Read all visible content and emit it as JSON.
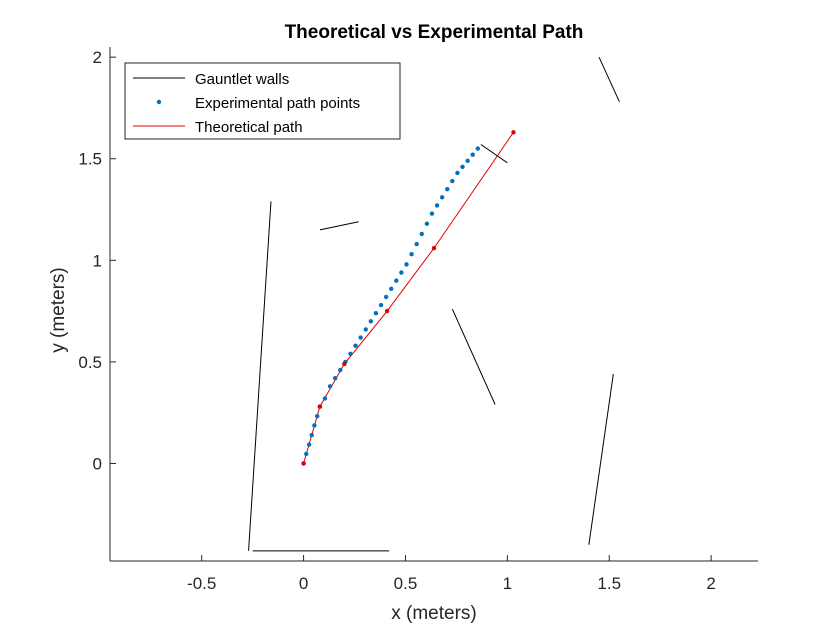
{
  "chart_data": {
    "type": "line",
    "title": "Theoretical vs Experimental Path",
    "xlabel": "x (meters)",
    "ylabel": "y (meters)",
    "xlim": [
      -0.95,
      2.23
    ],
    "ylim": [
      -0.48,
      2.05
    ],
    "xticks": [
      -0.5,
      0,
      0.5,
      1,
      1.5,
      2
    ],
    "xtick_labels": [
      "-0.5",
      "0",
      "0.5",
      "1",
      "1.5",
      "2"
    ],
    "yticks": [
      0,
      0.5,
      1,
      1.5,
      2
    ],
    "ytick_labels": [
      "0",
      "0.5",
      "1",
      "1.5",
      "2"
    ],
    "grid": false,
    "legend_position": "top-left",
    "colors": {
      "walls": "#000000",
      "experimental": "#0072BD",
      "theoretical": "#E00000",
      "axes": "#262626"
    },
    "series": [
      {
        "name": "Gauntlet walls",
        "kind": "segments",
        "segments": [
          [
            [
              -0.27,
              -0.43
            ],
            [
              -0.16,
              1.29
            ]
          ],
          [
            [
              -0.25,
              -0.43
            ],
            [
              0.42,
              -0.43
            ]
          ],
          [
            [
              0.08,
              1.15
            ],
            [
              0.27,
              1.19
            ]
          ],
          [
            [
              0.73,
              0.76
            ],
            [
              0.94,
              0.29
            ]
          ],
          [
            [
              1.4,
              -0.4
            ],
            [
              1.52,
              0.44
            ]
          ],
          [
            [
              0.87,
              1.57
            ],
            [
              1.0,
              1.48
            ]
          ],
          [
            [
              1.45,
              2.0
            ],
            [
              1.55,
              1.78
            ]
          ]
        ]
      },
      {
        "name": "Experimental path points",
        "kind": "scatter",
        "x": [
          0.0,
          0.013,
          0.027,
          0.04,
          0.053,
          0.067,
          0.08,
          0.105,
          0.13,
          0.155,
          0.18,
          0.205,
          0.23,
          0.255,
          0.28,
          0.305,
          0.33,
          0.355,
          0.38,
          0.405,
          0.43,
          0.455,
          0.48,
          0.505,
          0.53,
          0.555,
          0.58,
          0.605,
          0.63,
          0.655,
          0.68,
          0.705,
          0.73,
          0.755,
          0.78,
          0.805,
          0.83,
          0.855
        ],
        "y": [
          0.0,
          0.047,
          0.093,
          0.14,
          0.187,
          0.233,
          0.28,
          0.32,
          0.38,
          0.42,
          0.46,
          0.5,
          0.54,
          0.58,
          0.62,
          0.66,
          0.7,
          0.74,
          0.78,
          0.82,
          0.86,
          0.9,
          0.94,
          0.98,
          1.03,
          1.08,
          1.13,
          1.18,
          1.23,
          1.27,
          1.31,
          1.35,
          1.39,
          1.43,
          1.46,
          1.49,
          1.52,
          1.55
        ]
      },
      {
        "name": "Theoretical path",
        "kind": "line",
        "x": [
          0.0,
          0.08,
          0.2,
          0.41,
          0.64,
          1.03
        ],
        "y": [
          0.0,
          0.28,
          0.49,
          0.75,
          1.06,
          1.63
        ]
      }
    ]
  }
}
